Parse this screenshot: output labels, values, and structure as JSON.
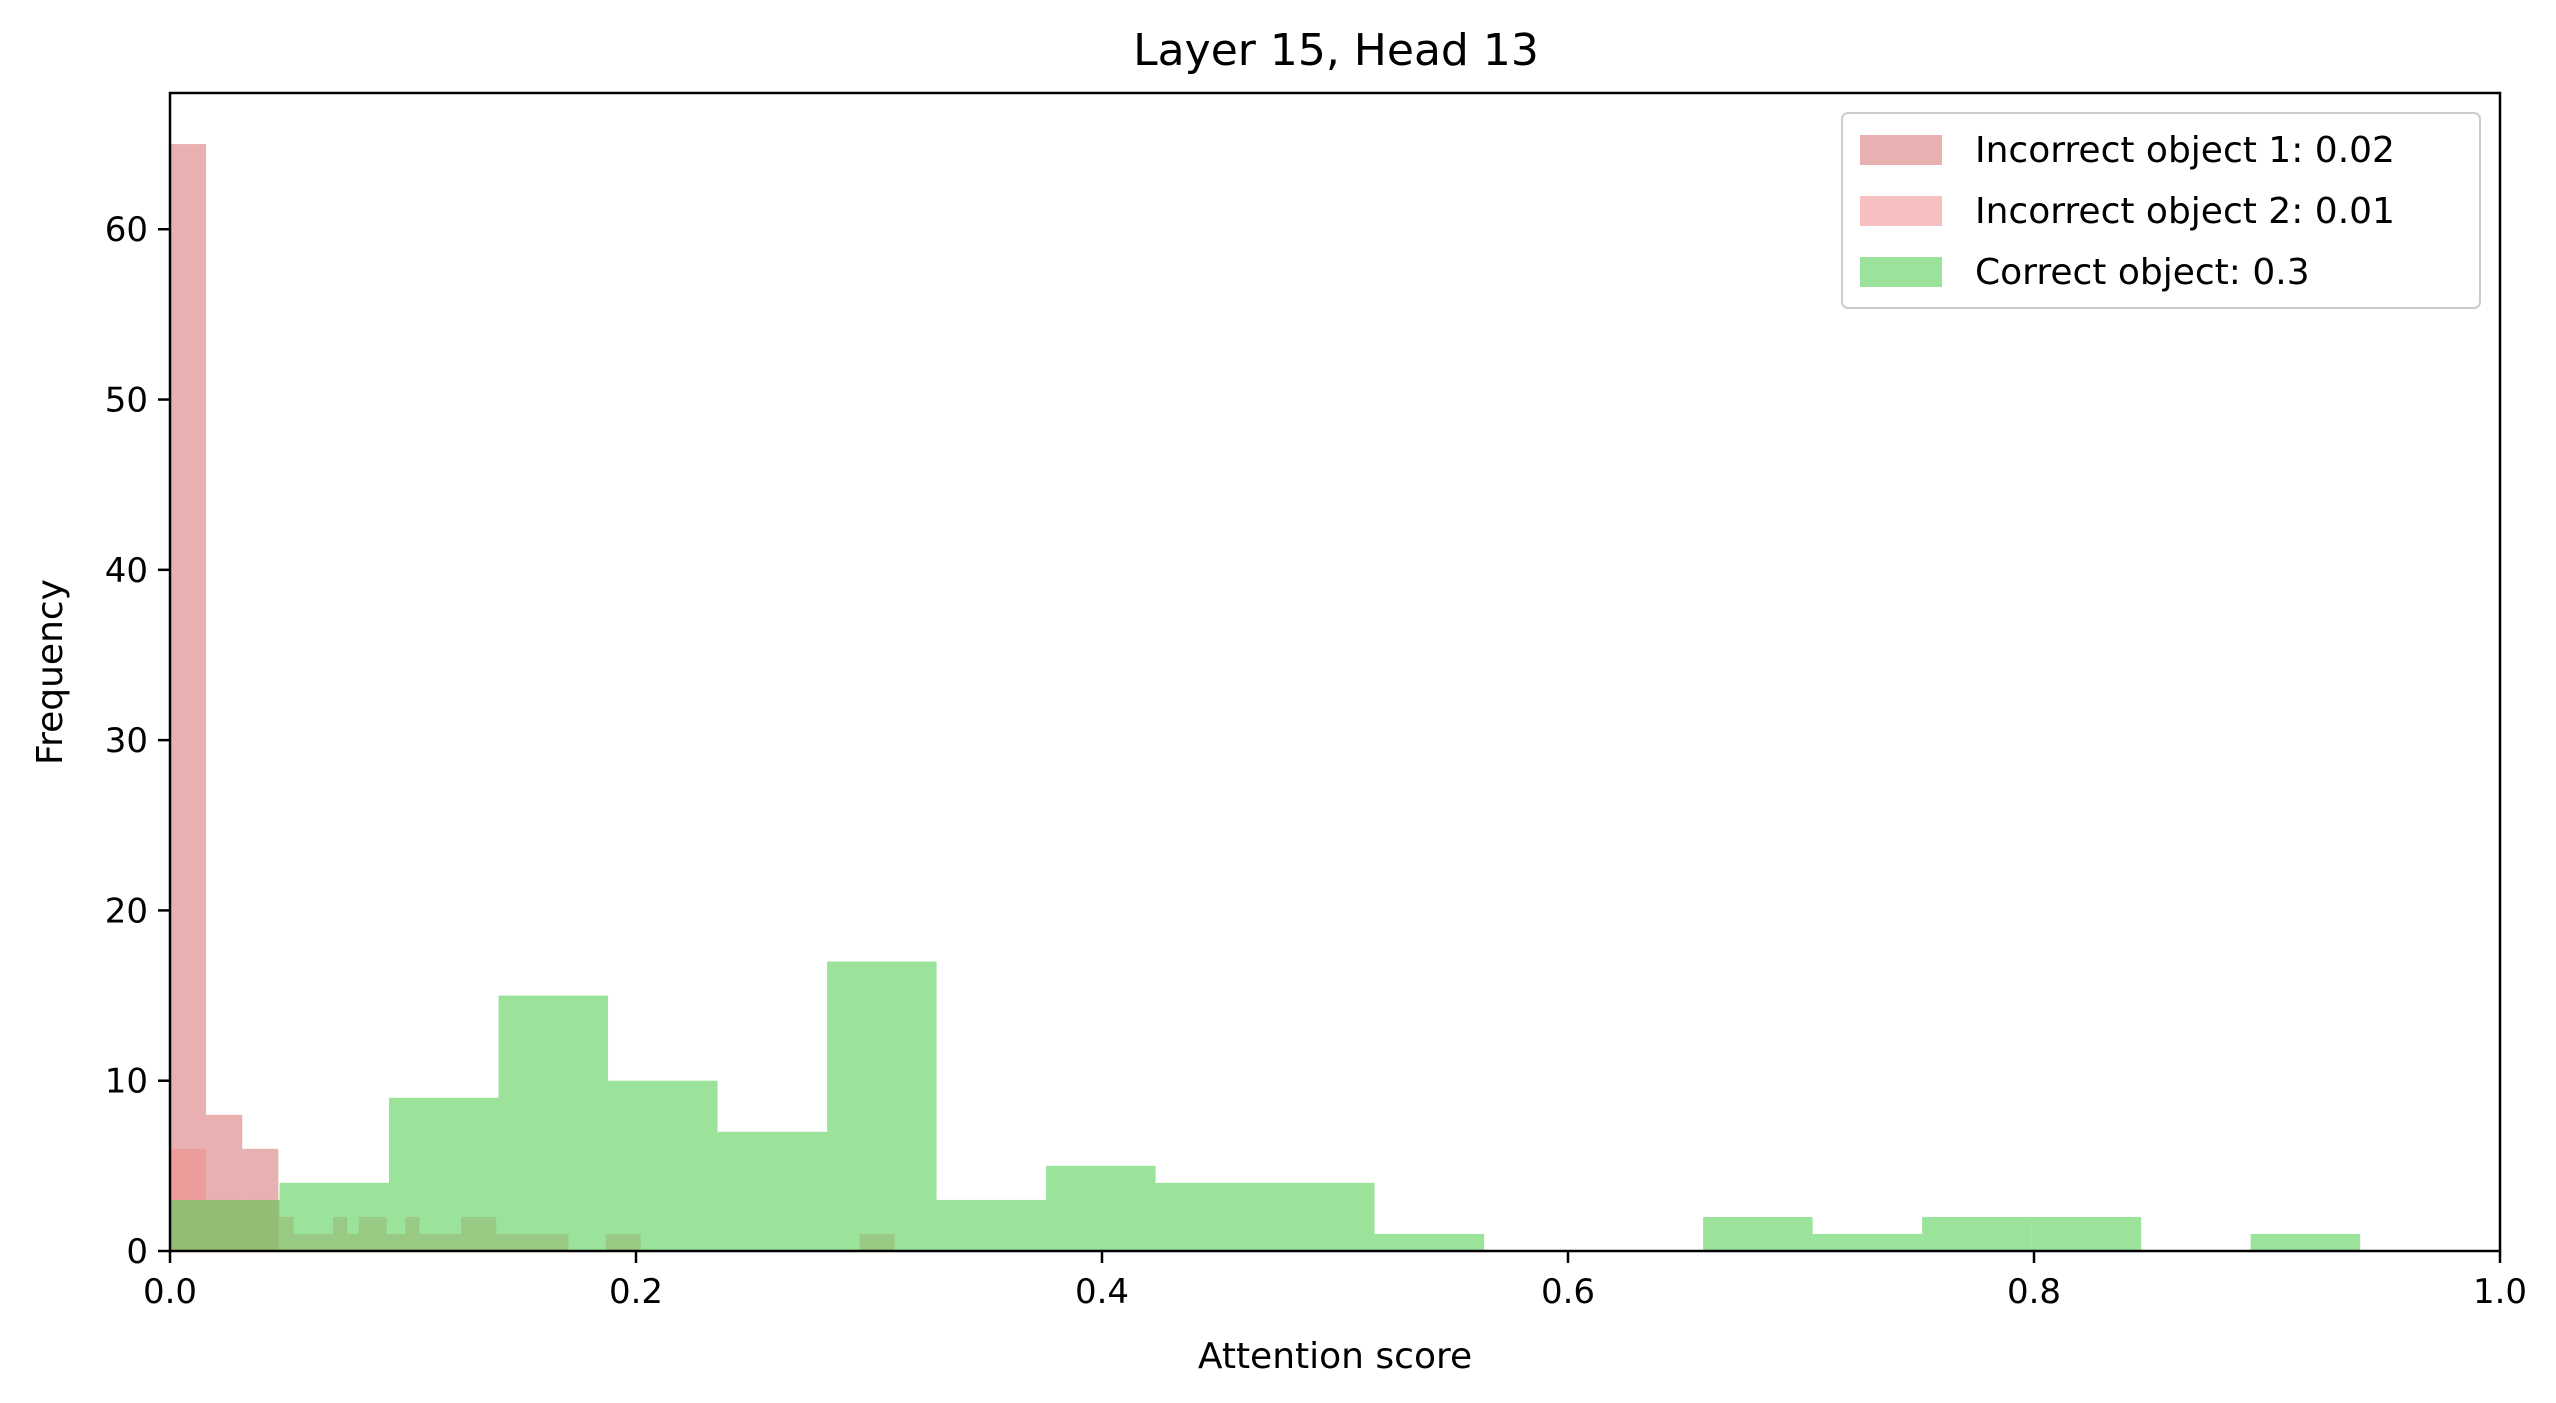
{
  "chart_data": {
    "type": "bar",
    "title": "Layer 15, Head 13",
    "xlabel": "Attention score",
    "ylabel": "Frequency",
    "xlim": [
      0.0,
      1.0
    ],
    "ylim": [
      0,
      68
    ],
    "xticks": [
      0.0,
      0.2,
      0.4,
      0.6,
      0.8,
      1.0
    ],
    "xtick_labels": [
      "0.0",
      "0.2",
      "0.4",
      "0.6",
      "0.8",
      "1.0"
    ],
    "yticks": [
      0,
      10,
      20,
      30,
      40,
      50,
      60
    ],
    "ytick_labels": [
      "0",
      "10",
      "20",
      "30",
      "40",
      "50",
      "60"
    ],
    "grid": false,
    "legend_position": "top-right",
    "series": [
      {
        "name": "Incorrect object 1: 0.02",
        "color": "#d87c7c",
        "opacity": 0.6,
        "bins": [
          {
            "x0": 0.0,
            "x1": 0.0155,
            "count": 65
          },
          {
            "x0": 0.0155,
            "x1": 0.031,
            "count": 8
          },
          {
            "x0": 0.031,
            "x1": 0.0465,
            "count": 6
          }
        ]
      },
      {
        "name": "Incorrect object 2: 0.01",
        "color": "#f08c8c",
        "opacity": 0.55,
        "bins": [
          {
            "x0": 0.0,
            "x1": 0.0155,
            "count": 6
          },
          {
            "x0": 0.0155,
            "x1": 0.047,
            "count": 3
          },
          {
            "x0": 0.047,
            "x1": 0.053,
            "count": 2
          },
          {
            "x0": 0.053,
            "x1": 0.07,
            "count": 1
          },
          {
            "x0": 0.07,
            "x1": 0.076,
            "count": 2
          },
          {
            "x0": 0.076,
            "x1": 0.081,
            "count": 1
          },
          {
            "x0": 0.081,
            "x1": 0.093,
            "count": 2
          },
          {
            "x0": 0.093,
            "x1": 0.101,
            "count": 1
          },
          {
            "x0": 0.101,
            "x1": 0.107,
            "count": 2
          },
          {
            "x0": 0.107,
            "x1": 0.125,
            "count": 1
          },
          {
            "x0": 0.125,
            "x1": 0.14,
            "count": 2
          },
          {
            "x0": 0.14,
            "x1": 0.171,
            "count": 1
          },
          {
            "x0": 0.187,
            "x1": 0.202,
            "count": 1
          },
          {
            "x0": 0.296,
            "x1": 0.311,
            "count": 1
          }
        ]
      },
      {
        "name": "Correct object: 0.3",
        "color": "#5ed15e",
        "opacity": 0.62,
        "bins": [
          {
            "x0": 0.0,
            "x1": 0.047,
            "count": 3
          },
          {
            "x0": 0.047,
            "x1": 0.094,
            "count": 4
          },
          {
            "x0": 0.094,
            "x1": 0.141,
            "count": 9
          },
          {
            "x0": 0.141,
            "x1": 0.188,
            "count": 15
          },
          {
            "x0": 0.188,
            "x1": 0.235,
            "count": 10
          },
          {
            "x0": 0.235,
            "x1": 0.282,
            "count": 7
          },
          {
            "x0": 0.282,
            "x1": 0.329,
            "count": 17
          },
          {
            "x0": 0.329,
            "x1": 0.376,
            "count": 3
          },
          {
            "x0": 0.376,
            "x1": 0.423,
            "count": 5
          },
          {
            "x0": 0.423,
            "x1": 0.47,
            "count": 4
          },
          {
            "x0": 0.47,
            "x1": 0.517,
            "count": 4
          },
          {
            "x0": 0.517,
            "x1": 0.564,
            "count": 1
          },
          {
            "x0": 0.564,
            "x1": 0.611,
            "count": 0
          },
          {
            "x0": 0.611,
            "x1": 0.658,
            "count": 0
          },
          {
            "x0": 0.658,
            "x1": 0.705,
            "count": 2
          },
          {
            "x0": 0.705,
            "x1": 0.752,
            "count": 1
          },
          {
            "x0": 0.752,
            "x1": 0.799,
            "count": 2
          },
          {
            "x0": 0.799,
            "x1": 0.846,
            "count": 2
          },
          {
            "x0": 0.846,
            "x1": 0.893,
            "count": 0
          },
          {
            "x0": 0.893,
            "x1": 0.94,
            "count": 1
          }
        ]
      }
    ]
  }
}
